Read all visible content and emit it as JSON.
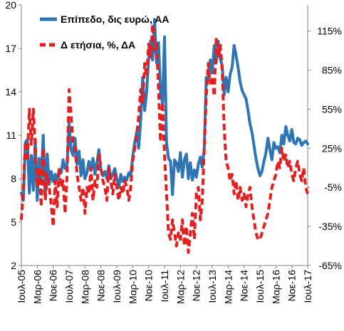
{
  "chart_data": {
    "type": "line",
    "colors": {
      "level": "#2E75B6",
      "yoy": "#E31F1F",
      "axis": "#808080",
      "text": "#000000"
    },
    "legend_placement": "top-left",
    "legend": [
      {
        "label": "Επίπεδο, δις ευρώ, ΑΑ",
        "series": "level",
        "style": "solid"
      },
      {
        "label": "Δ ετήσια, %, ΔΑ",
        "series": "yoy",
        "style": "dashed"
      }
    ],
    "left_axis": {
      "min": 2,
      "max": 20,
      "ticks": [
        "2",
        "5",
        "8",
        "11",
        "14",
        "17",
        "20"
      ]
    },
    "right_axis": {
      "min": -65,
      "max": 135,
      "ticks": [
        "-65%",
        "-35%",
        "-5%",
        "25%",
        "55%",
        "85%",
        "115%"
      ]
    },
    "grid": false,
    "x_range": [
      0,
      144
    ],
    "x_ticks": [
      {
        "label": "Ιουλ-05",
        "x": 0
      },
      {
        "label": "Μαρ-06",
        "x": 8
      },
      {
        "label": "Νοε-06",
        "x": 16
      },
      {
        "label": "Ιουλ-07",
        "x": 24
      },
      {
        "label": "Μαρ-08",
        "x": 32
      },
      {
        "label": "Νοε-08",
        "x": 40
      },
      {
        "label": "Ιουλ-09",
        "x": 48
      },
      {
        "label": "Μαρ-10",
        "x": 56
      },
      {
        "label": "Νοε-10",
        "x": 64
      },
      {
        "label": "Ιουλ-11",
        "x": 72
      },
      {
        "label": "Μαρ-12",
        "x": 80
      },
      {
        "label": "Νοε-12",
        "x": 88
      },
      {
        "label": "Ιουλ-13",
        "x": 96
      },
      {
        "label": "Μαρ-14",
        "x": 104
      },
      {
        "label": "Νοε-14",
        "x": 112
      },
      {
        "label": "Ιουλ-15",
        "x": 120
      },
      {
        "label": "Μαρ-16",
        "x": 128
      },
      {
        "label": "Νοε-16",
        "x": 136
      },
      {
        "label": "Ιουλ-17",
        "x": 144
      }
    ],
    "series": [
      {
        "key": "level",
        "axis": "left",
        "points": [
          [
            0,
            7.0
          ],
          [
            1,
            6.5
          ],
          [
            2,
            10.5
          ],
          [
            3,
            10.7
          ],
          [
            4,
            7.0
          ],
          [
            5,
            9.6
          ],
          [
            6,
            7.2
          ],
          [
            7,
            10.7
          ],
          [
            8,
            6.5
          ],
          [
            9,
            9.4
          ],
          [
            10,
            8.0
          ],
          [
            11,
            11.0
          ],
          [
            12,
            6.8
          ],
          [
            13,
            9.7
          ],
          [
            14,
            7.6
          ],
          [
            15,
            8.5
          ],
          [
            16,
            7.8
          ],
          [
            17,
            8.3
          ],
          [
            18,
            7.9
          ],
          [
            19,
            8.6
          ],
          [
            20,
            8.4
          ],
          [
            21,
            9.3
          ],
          [
            22,
            8.7
          ],
          [
            23,
            9.0
          ],
          [
            24,
            11.8
          ],
          [
            25,
            10.0
          ],
          [
            26,
            9.6
          ],
          [
            27,
            10.8
          ],
          [
            28,
            9.0
          ],
          [
            29,
            9.9
          ],
          [
            30,
            8.2
          ],
          [
            31,
            9.3
          ],
          [
            32,
            8.0
          ],
          [
            33,
            8.4
          ],
          [
            34,
            9.2
          ],
          [
            35,
            8.6
          ],
          [
            36,
            9.4
          ],
          [
            37,
            8.3
          ],
          [
            38,
            9.1
          ],
          [
            39,
            10.0
          ],
          [
            40,
            8.6
          ],
          [
            41,
            8.2
          ],
          [
            42,
            8.5
          ],
          [
            43,
            8.0
          ],
          [
            44,
            8.9
          ],
          [
            45,
            8.0
          ],
          [
            46,
            8.3
          ],
          [
            47,
            8.7
          ],
          [
            48,
            8.0
          ],
          [
            49,
            7.4
          ],
          [
            50,
            8.3
          ],
          [
            51,
            7.8
          ],
          [
            52,
            8.1
          ],
          [
            53,
            7.9
          ],
          [
            54,
            8.4
          ],
          [
            55,
            8.2
          ],
          [
            56,
            9.5
          ],
          [
            57,
            10.5
          ],
          [
            58,
            11.2
          ],
          [
            59,
            10.1
          ],
          [
            60,
            12.0
          ],
          [
            61,
            15.0
          ],
          [
            62,
            12.7
          ],
          [
            63,
            14.0
          ],
          [
            64,
            16.3
          ],
          [
            65,
            17.5
          ],
          [
            66,
            16.2
          ],
          [
            67,
            19.0
          ],
          [
            68,
            16.0
          ],
          [
            69,
            17.4
          ],
          [
            70,
            14.0
          ],
          [
            71,
            13.2
          ],
          [
            72,
            17.8
          ],
          [
            73,
            10.5
          ],
          [
            74,
            9.4
          ],
          [
            75,
            9.2
          ],
          [
            76,
            6.9
          ],
          [
            77,
            9.3
          ],
          [
            78,
            9.1
          ],
          [
            79,
            8.5
          ],
          [
            80,
            9.8
          ],
          [
            81,
            8.1
          ],
          [
            82,
            9.3
          ],
          [
            83,
            9.7
          ],
          [
            84,
            8.0
          ],
          [
            85,
            9.1
          ],
          [
            86,
            7.9
          ],
          [
            87,
            8.6
          ],
          [
            88,
            8.1
          ],
          [
            89,
            9.0
          ],
          [
            90,
            9.5
          ],
          [
            91,
            8.8
          ],
          [
            92,
            10.1
          ],
          [
            93,
            15.0
          ],
          [
            94,
            14.8
          ],
          [
            95,
            16.2
          ],
          [
            96,
            15.3
          ],
          [
            97,
            17.2
          ],
          [
            98,
            16.0
          ],
          [
            99,
            17.5
          ],
          [
            100,
            16.3
          ],
          [
            101,
            15.8
          ],
          [
            102,
            13.8
          ],
          [
            103,
            15.0
          ],
          [
            104,
            14.0
          ],
          [
            105,
            15.2
          ],
          [
            106,
            15.7
          ],
          [
            107,
            17.2
          ],
          [
            108,
            16.5
          ],
          [
            109,
            15.7
          ],
          [
            110,
            14.7
          ],
          [
            111,
            14.1
          ],
          [
            112,
            13.8
          ],
          [
            113,
            13.5
          ],
          [
            114,
            12.7
          ],
          [
            115,
            11.8
          ],
          [
            116,
            11.2
          ],
          [
            117,
            10.3
          ],
          [
            118,
            9.4
          ],
          [
            119,
            8.7
          ],
          [
            120,
            8.2
          ],
          [
            121,
            8.5
          ],
          [
            122,
            9.2
          ],
          [
            123,
            9.8
          ],
          [
            124,
            10.8
          ],
          [
            125,
            10.0
          ],
          [
            126,
            9.3
          ],
          [
            127,
            10.5
          ],
          [
            128,
            10.1
          ],
          [
            129,
            10.2
          ],
          [
            130,
            9.8
          ],
          [
            131,
            11.0
          ],
          [
            132,
            10.4
          ],
          [
            133,
            11.6
          ],
          [
            134,
            11.0
          ],
          [
            135,
            10.6
          ],
          [
            136,
            11.4
          ],
          [
            137,
            10.5
          ],
          [
            138,
            10.4
          ],
          [
            139,
            10.8
          ],
          [
            140,
            10.7
          ],
          [
            141,
            10.3
          ],
          [
            142,
            10.5
          ],
          [
            143,
            10.6
          ],
          [
            144,
            10.4
          ]
        ]
      },
      {
        "key": "yoy",
        "axis": "right",
        "points": [
          [
            0,
            -30
          ],
          [
            1,
            -5
          ],
          [
            2,
            30
          ],
          [
            3,
            15
          ],
          [
            4,
            55
          ],
          [
            5,
            28
          ],
          [
            6,
            55
          ],
          [
            7,
            25
          ],
          [
            8,
            -5
          ],
          [
            9,
            10
          ],
          [
            10,
            -20
          ],
          [
            11,
            25
          ],
          [
            12,
            -15
          ],
          [
            13,
            5
          ],
          [
            14,
            -5
          ],
          [
            15,
            -18
          ],
          [
            16,
            -35
          ],
          [
            17,
            0
          ],
          [
            18,
            -20
          ],
          [
            19,
            10
          ],
          [
            20,
            -5
          ],
          [
            21,
            0
          ],
          [
            22,
            -25
          ],
          [
            23,
            5
          ],
          [
            24,
            70
          ],
          [
            25,
            50
          ],
          [
            26,
            30
          ],
          [
            27,
            25
          ],
          [
            28,
            5
          ],
          [
            29,
            -5
          ],
          [
            30,
            -15
          ],
          [
            31,
            -5
          ],
          [
            32,
            -25
          ],
          [
            33,
            -5
          ],
          [
            34,
            -10
          ],
          [
            35,
            10
          ],
          [
            36,
            -15
          ],
          [
            37,
            0
          ],
          [
            38,
            -5
          ],
          [
            39,
            20
          ],
          [
            40,
            10
          ],
          [
            41,
            0
          ],
          [
            42,
            -5
          ],
          [
            43,
            -15
          ],
          [
            44,
            10
          ],
          [
            45,
            0
          ],
          [
            46,
            -10
          ],
          [
            47,
            5
          ],
          [
            48,
            -5
          ],
          [
            49,
            -15
          ],
          [
            50,
            -5
          ],
          [
            51,
            -10
          ],
          [
            52,
            0
          ],
          [
            53,
            -5
          ],
          [
            54,
            -15
          ],
          [
            55,
            -5
          ],
          [
            56,
            15
          ],
          [
            57,
            25
          ],
          [
            58,
            35
          ],
          [
            59,
            50
          ],
          [
            60,
            70
          ],
          [
            61,
            60
          ],
          [
            62,
            90
          ],
          [
            63,
            80
          ],
          [
            64,
            105
          ],
          [
            65,
            95
          ],
          [
            66,
            120
          ],
          [
            67,
            100
          ],
          [
            68,
            105
          ],
          [
            69,
            70
          ],
          [
            70,
            30
          ],
          [
            71,
            60
          ],
          [
            72,
            20
          ],
          [
            73,
            -10
          ],
          [
            74,
            -40
          ],
          [
            75,
            -45
          ],
          [
            76,
            -30
          ],
          [
            77,
            -40
          ],
          [
            78,
            -50
          ],
          [
            79,
            -40
          ],
          [
            80,
            -45
          ],
          [
            81,
            -30
          ],
          [
            82,
            -50
          ],
          [
            83,
            -35
          ],
          [
            84,
            -55
          ],
          [
            85,
            -40
          ],
          [
            86,
            -25
          ],
          [
            87,
            -45
          ],
          [
            88,
            -10
          ],
          [
            89,
            -5
          ],
          [
            90,
            -30
          ],
          [
            91,
            -15
          ],
          [
            92,
            25
          ],
          [
            93,
            65
          ],
          [
            94,
            90
          ],
          [
            95,
            75
          ],
          [
            96,
            80
          ],
          [
            97,
            65
          ],
          [
            98,
            110
          ],
          [
            99,
            95
          ],
          [
            100,
            105
          ],
          [
            101,
            85
          ],
          [
            102,
            40
          ],
          [
            103,
            15
          ],
          [
            104,
            10
          ],
          [
            105,
            0
          ],
          [
            106,
            5
          ],
          [
            107,
            -10
          ],
          [
            108,
            0
          ],
          [
            109,
            -15
          ],
          [
            110,
            -5
          ],
          [
            111,
            -15
          ],
          [
            112,
            -10
          ],
          [
            113,
            -20
          ],
          [
            114,
            -10
          ],
          [
            115,
            -5
          ],
          [
            116,
            -20
          ],
          [
            117,
            -30
          ],
          [
            118,
            -40
          ],
          [
            119,
            -45
          ],
          [
            120,
            -45
          ],
          [
            121,
            -40
          ],
          [
            122,
            -35
          ],
          [
            123,
            -30
          ],
          [
            124,
            -25
          ],
          [
            125,
            -15
          ],
          [
            126,
            -5
          ],
          [
            127,
            0
          ],
          [
            128,
            5
          ],
          [
            129,
            15
          ],
          [
            130,
            10
          ],
          [
            131,
            25
          ],
          [
            132,
            15
          ],
          [
            133,
            20
          ],
          [
            134,
            10
          ],
          [
            135,
            15
          ],
          [
            136,
            5
          ],
          [
            137,
            0
          ],
          [
            138,
            10
          ],
          [
            139,
            15
          ],
          [
            140,
            5
          ],
          [
            141,
            0
          ],
          [
            142,
            10
          ],
          [
            143,
            -5
          ],
          [
            144,
            -10
          ]
        ]
      }
    ]
  }
}
